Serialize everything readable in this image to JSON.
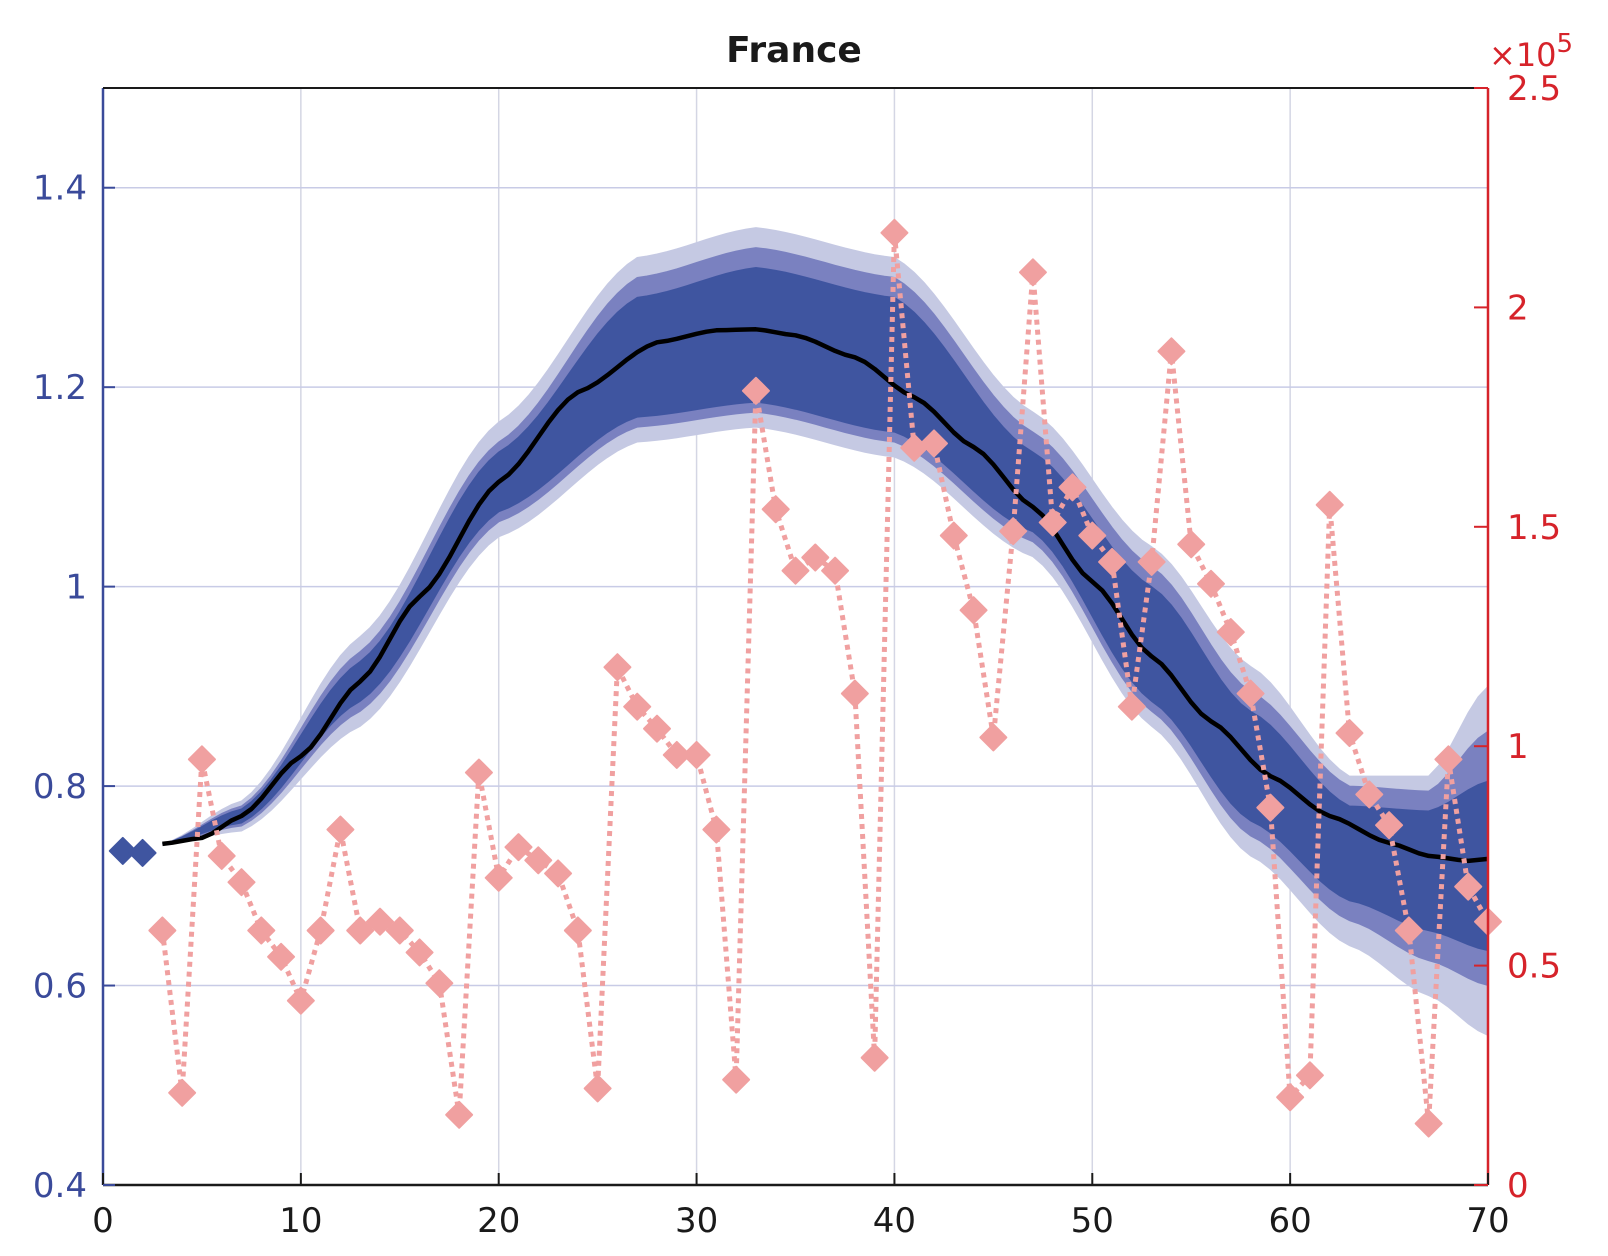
{
  "chart_data": {
    "type": "line",
    "title": "France",
    "xlabel": "",
    "ylabel": "",
    "y2label": "",
    "xlim": [
      0,
      70
    ],
    "ylim": [
      0.4,
      1.5
    ],
    "y2lim": [
      0,
      250000
    ],
    "x_ticks": [
      "0",
      "10",
      "20",
      "30",
      "40",
      "50",
      "60",
      "70"
    ],
    "y_ticks": [
      "0.4",
      "0.6",
      "0.8",
      "1",
      "1.2",
      "1.4"
    ],
    "y2_ticks": [
      "0",
      "0.5",
      "1",
      "1.5",
      "2",
      "2.5"
    ],
    "y2_exponent_label": "×10",
    "y2_exponent_power": "5",
    "grid": true,
    "colors": {
      "band_outer": "#c5c9e3",
      "band_mid": "#7a81c0",
      "band_inner": "#3f55a0",
      "mean_line": "#000000",
      "observed_markers": "#3f55a0",
      "cases_series": "#f0a0a0",
      "left_axis": "#3a4a9a",
      "right_axis": "#d6232a"
    },
    "series": [
      {
        "role": "observed",
        "x": [
          1,
          2
        ],
        "y": [
          0.735,
          0.733
        ]
      },
      {
        "role": "mean",
        "x": [
          3,
          5,
          7,
          10,
          13,
          16,
          20,
          24,
          28,
          31,
          33,
          35,
          38,
          41,
          44,
          47,
          50,
          53,
          56,
          59,
          62,
          65,
          67,
          69,
          70
        ],
        "y": [
          0.742,
          0.748,
          0.77,
          0.83,
          0.905,
          0.99,
          1.105,
          1.195,
          1.245,
          1.257,
          1.258,
          1.252,
          1.23,
          1.19,
          1.14,
          1.08,
          1.005,
          0.93,
          0.865,
          0.81,
          0.77,
          0.743,
          0.73,
          0.725,
          0.727
        ]
      },
      {
        "role": "band_outer",
        "x": [
          3,
          7,
          13,
          20,
          27,
          33,
          40,
          47,
          53,
          58,
          63,
          67,
          70
        ],
        "lower": [
          0.742,
          0.755,
          0.86,
          1.05,
          1.145,
          1.16,
          1.13,
          1.03,
          0.86,
          0.73,
          0.64,
          0.59,
          0.55
        ],
        "upper": [
          0.742,
          0.785,
          0.95,
          1.165,
          1.33,
          1.36,
          1.33,
          1.175,
          1.04,
          0.92,
          0.81,
          0.81,
          0.9
        ]
      },
      {
        "role": "band_mid",
        "x": [
          3,
          7,
          13,
          20,
          27,
          33,
          40,
          47,
          53,
          58,
          63,
          67,
          70
        ],
        "lower": [
          0.742,
          0.76,
          0.875,
          1.065,
          1.16,
          1.175,
          1.145,
          1.045,
          0.875,
          0.75,
          0.665,
          0.625,
          0.6
        ],
        "upper": [
          0.742,
          0.78,
          0.935,
          1.145,
          1.31,
          1.34,
          1.31,
          1.155,
          1.02,
          0.895,
          0.8,
          0.795,
          0.855
        ]
      },
      {
        "role": "band_inner",
        "x": [
          3,
          7,
          13,
          20,
          27,
          33,
          40,
          47,
          53,
          58,
          63,
          67,
          70
        ],
        "lower": [
          0.742,
          0.763,
          0.885,
          1.075,
          1.17,
          1.185,
          1.155,
          1.055,
          0.885,
          0.765,
          0.685,
          0.655,
          0.635
        ],
        "upper": [
          0.742,
          0.777,
          0.925,
          1.135,
          1.29,
          1.32,
          1.29,
          1.135,
          1.0,
          0.875,
          0.78,
          0.775,
          0.805
        ]
      },
      {
        "role": "daily_cases",
        "axis": "right",
        "x": [
          3,
          4,
          5,
          6,
          7,
          8,
          9,
          10,
          11,
          12,
          13,
          14,
          15,
          16,
          17,
          18,
          19,
          20,
          21,
          22,
          23,
          24,
          25,
          26,
          27,
          28,
          29,
          30,
          31,
          32,
          33,
          34,
          35,
          36,
          37,
          38,
          39,
          40,
          41,
          42,
          43,
          44,
          45,
          46,
          47,
          48,
          49,
          50,
          51,
          52,
          53,
          54,
          55,
          56,
          57,
          58,
          59,
          60,
          61,
          62,
          63,
          64,
          65,
          66,
          67,
          68,
          69,
          70
        ],
        "y": [
          58000,
          21000,
          97000,
          75000,
          69000,
          58000,
          52000,
          42000,
          58000,
          81000,
          58000,
          60000,
          58000,
          53000,
          46000,
          16000,
          94000,
          70000,
          77000,
          74000,
          71000,
          58000,
          22000,
          118000,
          109000,
          104000,
          98000,
          98000,
          81000,
          24000,
          181000,
          154000,
          140000,
          143000,
          140000,
          112000,
          29000,
          217000,
          168000,
          169000,
          148000,
          131000,
          102000,
          149000,
          208000,
          151000,
          159000,
          148000,
          142000,
          109000,
          142000,
          190000,
          146000,
          137000,
          126000,
          112000,
          86000,
          20000,
          25000,
          155000,
          103000,
          89000,
          82000,
          58000,
          14000,
          97000,
          68000,
          60000
        ]
      }
    ]
  }
}
